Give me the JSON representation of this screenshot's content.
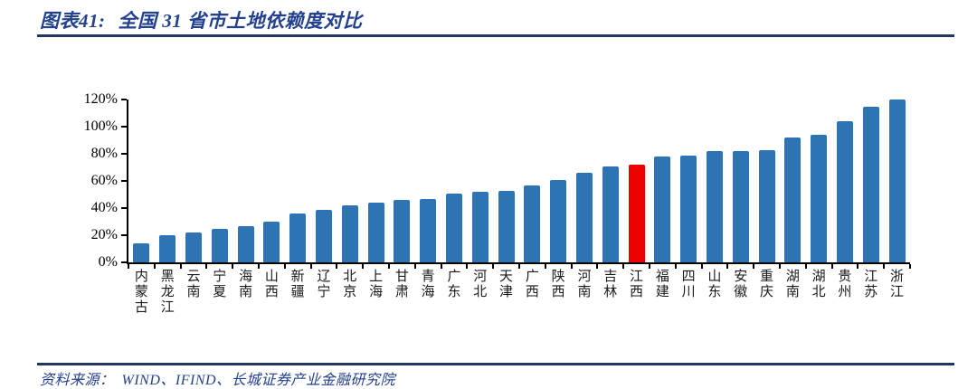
{
  "header": {
    "label": "图表41:",
    "title": "全国 31 省市土地依赖度对比"
  },
  "footer": {
    "label": "资料来源：",
    "text": "WIND、IFIND、长城证券产业金融研究院"
  },
  "colors": {
    "bar": "#2E74B5",
    "highlight": "#EC0000",
    "rule": "#1F3864",
    "heading_text": "#24418F",
    "axis": "#000000"
  },
  "chart_data": {
    "type": "bar",
    "title": "全国 31 省市土地依赖度对比",
    "xlabel": "",
    "ylabel": "",
    "unit": "%",
    "ylim": [
      0,
      120
    ],
    "yticks": [
      0,
      20,
      40,
      60,
      80,
      100,
      120
    ],
    "ytick_suffix": "%",
    "grid": false,
    "legend": false,
    "categories": [
      "内蒙古",
      "黑龙江",
      "云南",
      "宁夏",
      "海南",
      "山西",
      "新疆",
      "辽宁",
      "北京",
      "上海",
      "甘肃",
      "青海",
      "广东",
      "河北",
      "天津",
      "广西",
      "陕西",
      "河南",
      "吉林",
      "江西",
      "福建",
      "四川",
      "山东",
      "安徽",
      "重庆",
      "湖南",
      "湖北",
      "贵州",
      "江苏",
      "浙江"
    ],
    "values": [
      14,
      20,
      22,
      25,
      27,
      30,
      36,
      39,
      42,
      44,
      46,
      47,
      51,
      52,
      53,
      57,
      61,
      66,
      71,
      72,
      78,
      79,
      82,
      82,
      83,
      92,
      94,
      104,
      115,
      120
    ],
    "highlight_category": "江西",
    "highlight_index": 19
  }
}
